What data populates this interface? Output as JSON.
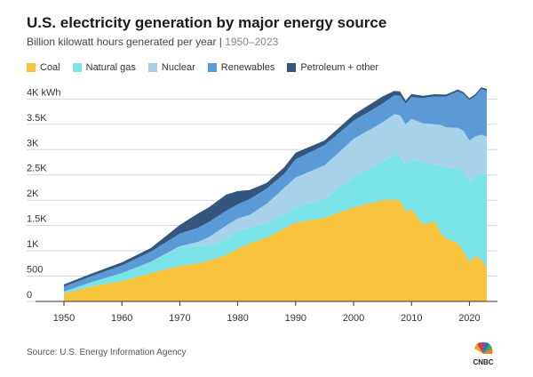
{
  "header": {
    "title": "U.S. electricity generation by major energy source",
    "subtitle_main": "Billion kilowatt hours generated per year | ",
    "subtitle_years": "1950–2023"
  },
  "footer": {
    "source": "Source: U.S. Energy Information Agency",
    "logo_text": "CNBC"
  },
  "chart_data": {
    "type": "area",
    "stacked": true,
    "title": "U.S. electricity generation by major energy source",
    "subtitle": "Billion kilowatt hours generated per year | 1950–2023",
    "x": [
      1950,
      1955,
      1960,
      1965,
      1970,
      1973,
      1975,
      1978,
      1980,
      1982,
      1985,
      1988,
      1990,
      1995,
      2000,
      2005,
      2007,
      2008,
      2009,
      2010,
      2012,
      2014,
      2015,
      2016,
      2018,
      2019,
      2020,
      2021,
      2022,
      2023
    ],
    "series": [
      {
        "name": "Coal",
        "color": "#f9c23c",
        "values": [
          155,
          300,
          400,
          560,
          700,
          750,
          800,
          920,
          1040,
          1140,
          1260,
          1440,
          1560,
          1650,
          1860,
          2000,
          2010,
          2000,
          1780,
          1820,
          1520,
          1580,
          1360,
          1240,
          1150,
          970,
          780,
          900,
          830,
          680
        ]
      },
      {
        "name": "Natural gas",
        "color": "#79e3e8",
        "values": [
          40,
          90,
          160,
          220,
          370,
          340,
          300,
          310,
          350,
          310,
          290,
          280,
          310,
          370,
          600,
          760,
          890,
          880,
          920,
          990,
          1230,
          1120,
          1330,
          1390,
          1470,
          1590,
          1610,
          1580,
          1690,
          1810
        ]
      },
      {
        "name": "Nuclear",
        "color": "#a8d2ea",
        "values": [
          0,
          0,
          1,
          4,
          22,
          80,
          170,
          270,
          250,
          260,
          380,
          520,
          580,
          670,
          750,
          780,
          800,
          800,
          800,
          800,
          770,
          800,
          800,
          810,
          810,
          810,
          790,
          780,
          775,
          775
        ]
      },
      {
        "name": "Renewables",
        "color": "#5a9ad6",
        "values": [
          100,
          120,
          150,
          200,
          250,
          280,
          300,
          290,
          280,
          310,
          300,
          280,
          360,
          400,
          360,
          370,
          370,
          390,
          410,
          430,
          500,
          550,
          560,
          610,
          720,
          730,
          800,
          800,
          900,
          900
        ]
      },
      {
        "name": "Petroleum + other",
        "color": "#34557d",
        "values": [
          40,
          50,
          60,
          70,
          170,
          280,
          290,
          320,
          260,
          180,
          110,
          130,
          130,
          90,
          120,
          140,
          90,
          80,
          60,
          60,
          45,
          45,
          40,
          40,
          40,
          35,
          35,
          35,
          35,
          35
        ]
      }
    ],
    "xlim": [
      1950,
      2023
    ],
    "ylim": [
      0,
      4200
    ],
    "x_ticks": [
      "1950",
      "1960",
      "1970",
      "1980",
      "1990",
      "2000",
      "2010",
      "2020"
    ],
    "y_ticks": [
      "0",
      "500",
      "1K",
      "1.5K",
      "2K",
      "2.5K",
      "3K",
      "3.5K",
      "4K kWh"
    ],
    "grid": true,
    "legend": "top-left"
  }
}
